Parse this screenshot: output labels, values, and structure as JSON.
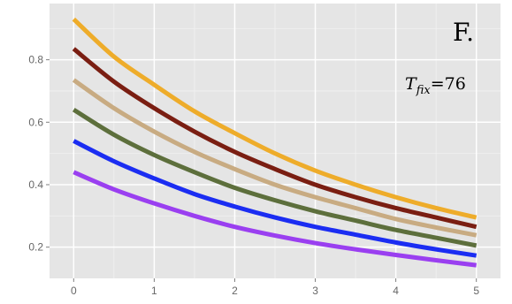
{
  "chart_data": {
    "type": "line",
    "title": "",
    "xlabel": "",
    "ylabel": "",
    "panel_label": "F.",
    "annotation": {
      "symbol": "T",
      "subscript": "fix",
      "text": "=76"
    },
    "xlim": [
      -0.3,
      5.3
    ],
    "ylim": [
      0.1,
      0.98
    ],
    "x_ticks": [
      0,
      1,
      2,
      3,
      4,
      5
    ],
    "y_ticks": [
      0.2,
      0.4,
      0.6,
      0.8
    ],
    "x_tick_labels": [
      "0",
      "1",
      "2",
      "3",
      "4",
      "5"
    ],
    "y_tick_labels": [
      "0.2",
      "0.4",
      "0.6",
      "0.8"
    ],
    "grid": true,
    "background": "#e5e5e5",
    "gridline_color": "#ffffff",
    "x": [
      0,
      0.5,
      1,
      1.5,
      2,
      2.5,
      3,
      3.5,
      4,
      4.5,
      5
    ],
    "series": [
      {
        "color": "#eeac2a",
        "values": [
          0.93,
          0.81,
          0.72,
          0.635,
          0.565,
          0.5,
          0.445,
          0.4,
          0.36,
          0.325,
          0.295
        ]
      },
      {
        "color": "#7a1e12",
        "values": [
          0.835,
          0.73,
          0.645,
          0.57,
          0.505,
          0.45,
          0.4,
          0.36,
          0.325,
          0.295,
          0.265
        ]
      },
      {
        "color": "#c8ab82",
        "values": [
          0.735,
          0.645,
          0.57,
          0.505,
          0.45,
          0.4,
          0.36,
          0.325,
          0.29,
          0.263,
          0.238
        ]
      },
      {
        "color": "#5d6f3c",
        "values": [
          0.64,
          0.56,
          0.495,
          0.44,
          0.39,
          0.35,
          0.315,
          0.285,
          0.255,
          0.23,
          0.205
        ]
      },
      {
        "color": "#1b2df2",
        "values": [
          0.54,
          0.475,
          0.42,
          0.37,
          0.33,
          0.295,
          0.265,
          0.24,
          0.215,
          0.193,
          0.173
        ]
      },
      {
        "color": "#9a3ff0",
        "values": [
          0.44,
          0.385,
          0.34,
          0.3,
          0.265,
          0.237,
          0.213,
          0.193,
          0.175,
          0.158,
          0.142
        ]
      }
    ]
  }
}
